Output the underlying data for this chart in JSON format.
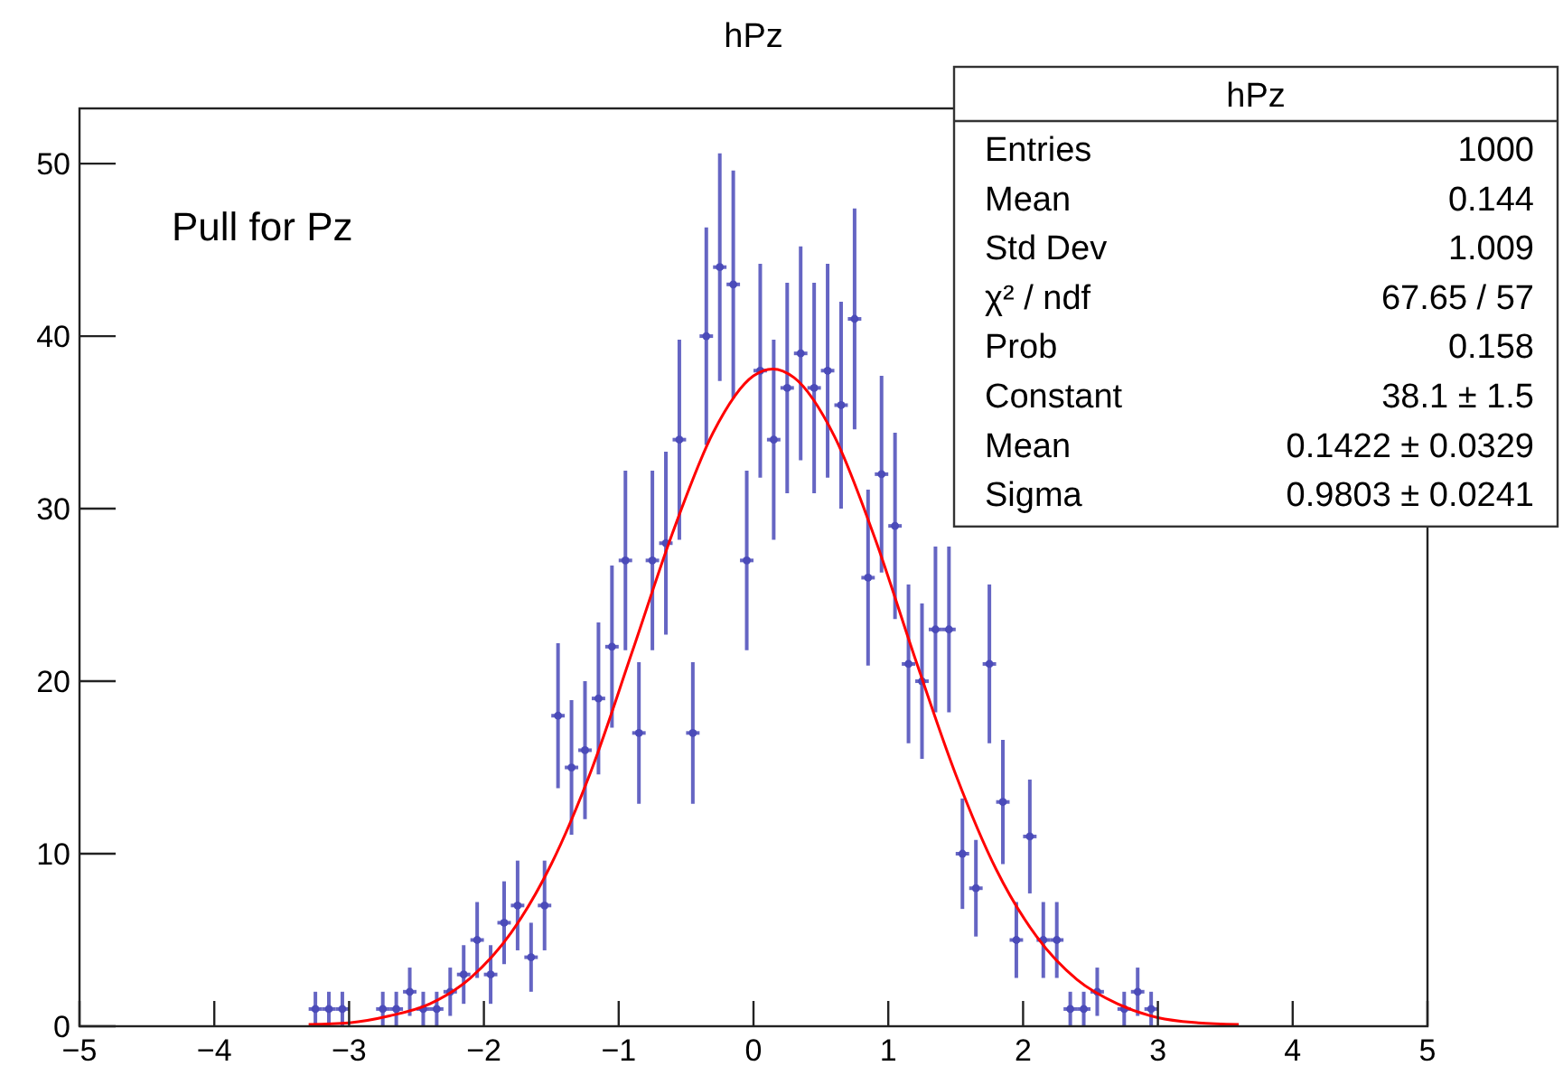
{
  "chart_data": {
    "type": "scatter",
    "title": "hPz",
    "annotations": [
      "Pull for Pz",
      "hPz",
      "Entries",
      "1000",
      "Mean",
      "0.144",
      "Std Dev",
      "1.009",
      "χ² / ndf",
      "67.65 / 57",
      "Prob",
      "0.158",
      "Constant",
      "38.1 ± 1.5",
      "Mean",
      "0.1422 ± 0.0329",
      "Sigma",
      "0.9803 ± 0.0241"
    ],
    "series": [
      {
        "color": "#4b4bb9",
        "x": [
          -3.25,
          -3.15,
          -3.05,
          -2.75,
          -2.65,
          -2.55,
          -2.45,
          -2.35,
          -2.25,
          -2.15,
          -2.05,
          -1.95,
          -1.85,
          -1.75,
          -1.65,
          -1.55,
          -1.45,
          -1.35,
          -1.25,
          -1.15,
          -1.05,
          -0.95,
          -0.85,
          -0.75,
          -0.65,
          -0.55,
          -0.45,
          -0.35,
          -0.25,
          -0.15,
          -0.05,
          0.05,
          0.15,
          0.25,
          0.35,
          0.45,
          0.55,
          0.65,
          0.75,
          0.85,
          0.95,
          1.05,
          1.15,
          1.25,
          1.35,
          1.45,
          1.55,
          1.65,
          1.75,
          1.85,
          1.95,
          2.05,
          2.15,
          2.25,
          2.35,
          2.45,
          2.55,
          2.75,
          2.85,
          2.95
        ],
        "values": [
          1,
          1,
          1,
          1,
          1,
          2,
          1,
          1,
          2,
          3,
          5,
          3,
          6,
          7,
          4,
          7,
          18,
          15,
          16,
          19,
          22,
          27,
          17,
          27,
          28,
          34,
          17,
          40,
          44,
          43,
          27,
          38,
          34,
          37,
          39,
          37,
          38,
          36,
          41,
          26,
          32,
          29,
          21,
          20,
          23,
          23,
          10,
          8,
          21,
          13,
          5,
          11,
          5,
          5,
          1,
          1,
          2,
          1,
          2,
          1
        ],
        "errors": [
          1,
          1,
          1,
          1,
          1,
          1.4,
          1,
          1,
          1.4,
          1.7,
          2.2,
          1.7,
          2.4,
          2.6,
          2,
          2.6,
          4.2,
          3.9,
          4,
          4.4,
          4.7,
          5.2,
          4.1,
          5.2,
          5.3,
          5.8,
          4.1,
          6.3,
          6.6,
          6.6,
          5.2,
          6.2,
          5.8,
          6.1,
          6.2,
          6.1,
          6.2,
          6,
          6.4,
          5.1,
          5.7,
          5.4,
          4.6,
          4.5,
          4.8,
          4.8,
          3.2,
          2.8,
          4.6,
          3.6,
          2.2,
          3.3,
          2.2,
          2.2,
          1,
          1,
          1.4,
          1,
          1.4,
          1
        ],
        "xerrors": [
          0.05,
          0.05,
          0.05,
          0.05,
          0.05,
          0.05,
          0.05,
          0.05,
          0.05,
          0.05,
          0.05,
          0.05,
          0.05,
          0.05,
          0.05,
          0.05,
          0.05,
          0.05,
          0.05,
          0.05,
          0.05,
          0.05,
          0.05,
          0.05,
          0.05,
          0.05,
          0.05,
          0.05,
          0.05,
          0.05,
          0.05,
          0.05,
          0.05,
          0.05,
          0.05,
          0.05,
          0.05,
          0.05,
          0.05,
          0.05,
          0.05,
          0.05,
          0.05,
          0.05,
          0.05,
          0.05,
          0.05,
          0.05,
          0.05,
          0.05,
          0.05,
          0.05,
          0.05,
          0.05,
          0.05,
          0.05,
          0.05,
          0.05,
          0.05,
          0.05
        ]
      },
      {
        "type": "line",
        "color": "#ff0000",
        "x": [
          -3.3,
          -3,
          -2.7,
          -2.4,
          -2.1,
          -1.8,
          -1.5,
          -1.2,
          -0.9,
          -0.6,
          -0.3,
          0,
          0.1422,
          0.3,
          0.6,
          0.9,
          1.2,
          1.5,
          1.8,
          2.1,
          2.4,
          2.7,
          3,
          3.3,
          3.6
        ],
        "values": [
          0.1,
          0.2,
          0.6,
          1.3,
          2.8,
          5.4,
          9.4,
          14.9,
          21.7,
          28.6,
          34.4,
          37.7,
          38.1,
          37.6,
          34.2,
          28.3,
          21.3,
          14.6,
          9.1,
          5.2,
          2.7,
          1.3,
          0.5,
          0.2,
          0.1
        ]
      }
    ],
    "xlim": [
      -5,
      5
    ],
    "ylim": [
      0,
      53.2
    ],
    "xticks": [
      -5,
      -4,
      -3,
      -2,
      -1,
      0,
      1,
      2,
      3,
      4,
      5
    ],
    "yticks": [
      0,
      10,
      20,
      30,
      40,
      50
    ]
  }
}
